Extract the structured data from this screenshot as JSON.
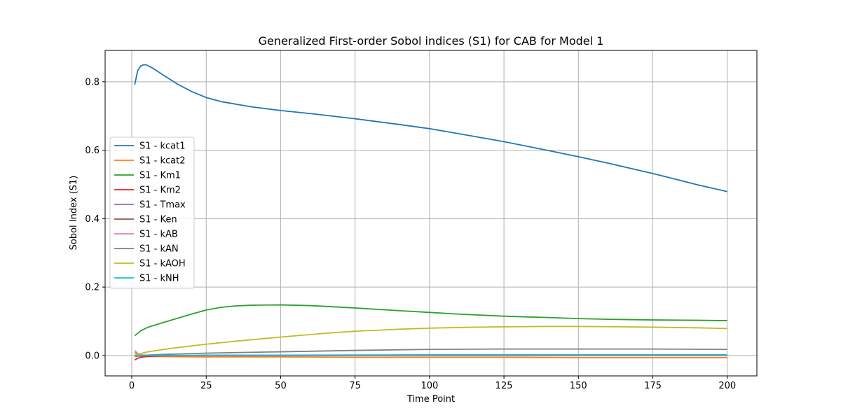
{
  "chart_data": {
    "type": "line",
    "title": "Generalized First-order Sobol indices (S1) for CAB for Model 1",
    "xlabel": "Time Point",
    "ylabel": "Sobol Index (S1)",
    "xlim": [
      -8.95,
      209.95
    ],
    "ylim": [
      -0.0595,
      0.8917
    ],
    "xticks": [
      0,
      25,
      50,
      75,
      100,
      125,
      150,
      175,
      200
    ],
    "yticks": [
      0.0,
      0.2,
      0.4,
      0.6,
      0.8
    ],
    "ytick_labels": [
      "0.0",
      "0.2",
      "0.4",
      "0.6",
      "0.8"
    ],
    "grid": true,
    "legend_position": "center-left",
    "series": [
      {
        "name": "S1 - kcat1",
        "color": "#1f77b4",
        "x": [
          1,
          2,
          3,
          4,
          5,
          7,
          10,
          15,
          20,
          25,
          30,
          40,
          50,
          60,
          75,
          90,
          100,
          110,
          125,
          140,
          150,
          160,
          175,
          190,
          200
        ],
        "y": [
          0.792,
          0.833,
          0.846,
          0.85,
          0.849,
          0.84,
          0.823,
          0.795,
          0.772,
          0.754,
          0.742,
          0.727,
          0.716,
          0.707,
          0.692,
          0.675,
          0.663,
          0.648,
          0.625,
          0.599,
          0.581,
          0.562,
          0.532,
          0.499,
          0.479
        ]
      },
      {
        "name": "S1 - kcat2",
        "color": "#ff7f0e",
        "x": [
          1,
          2,
          3,
          5,
          10,
          25,
          50,
          75,
          100,
          125,
          150,
          175,
          200
        ],
        "y": [
          0.01,
          0.002,
          -0.002,
          -0.003,
          -0.003,
          -0.004,
          -0.004,
          -0.005,
          -0.005,
          -0.005,
          -0.006,
          -0.006,
          -0.006
        ]
      },
      {
        "name": "S1 - Km1",
        "color": "#2ca02c",
        "x": [
          1,
          2,
          3,
          5,
          7,
          10,
          15,
          20,
          25,
          30,
          35,
          40,
          50,
          60,
          75,
          90,
          100,
          110,
          125,
          140,
          150,
          160,
          175,
          190,
          200
        ],
        "y": [
          0.058,
          0.065,
          0.072,
          0.081,
          0.087,
          0.095,
          0.108,
          0.121,
          0.133,
          0.141,
          0.145,
          0.147,
          0.148,
          0.146,
          0.139,
          0.131,
          0.126,
          0.121,
          0.115,
          0.111,
          0.108,
          0.106,
          0.104,
          0.103,
          0.102
        ]
      },
      {
        "name": "S1 - Km2",
        "color": "#d62728",
        "x": [
          1,
          2,
          3,
          5,
          10,
          25,
          50,
          100,
          150,
          200
        ],
        "y": [
          -0.013,
          -0.008,
          -0.005,
          -0.003,
          -0.001,
          0.0,
          0.0,
          0.0,
          0.0,
          0.0
        ]
      },
      {
        "name": "S1 - Tmax",
        "color": "#9467bd",
        "x": [
          1,
          3,
          5,
          10,
          25,
          50,
          100,
          150,
          200
        ],
        "y": [
          0.0,
          0.0,
          0.0,
          0.0,
          0.0,
          0.0,
          0.0,
          0.0,
          0.0
        ]
      },
      {
        "name": "S1 - Ken",
        "color": "#8c564b",
        "x": [
          1,
          3,
          5,
          10,
          25,
          50,
          100,
          150,
          200
        ],
        "y": [
          -0.002,
          -0.001,
          0.0,
          0.0,
          0.0,
          0.0,
          0.0,
          0.0,
          0.0
        ]
      },
      {
        "name": "S1 - kAB",
        "color": "#e377c2",
        "x": [
          1,
          2,
          3,
          5,
          10,
          25,
          50,
          100,
          150,
          200
        ],
        "y": [
          0.015,
          0.006,
          0.002,
          0.001,
          0.0,
          0.0,
          0.0,
          0.0,
          0.0,
          0.0
        ]
      },
      {
        "name": "S1 - kAN",
        "color": "#7f7f7f",
        "x": [
          1,
          3,
          5,
          10,
          25,
          50,
          75,
          100,
          125,
          150,
          175,
          200
        ],
        "y": [
          -0.003,
          -0.001,
          0.001,
          0.003,
          0.007,
          0.011,
          0.015,
          0.018,
          0.019,
          0.019,
          0.019,
          0.018
        ]
      },
      {
        "name": "S1 - kAOH",
        "color": "#bcbd22",
        "x": [
          1,
          3,
          5,
          10,
          15,
          25,
          35,
          50,
          65,
          75,
          90,
          100,
          115,
          125,
          140,
          150,
          165,
          175,
          190,
          200
        ],
        "y": [
          0.002,
          0.006,
          0.01,
          0.017,
          0.023,
          0.033,
          0.042,
          0.054,
          0.065,
          0.071,
          0.077,
          0.08,
          0.083,
          0.084,
          0.085,
          0.085,
          0.084,
          0.083,
          0.081,
          0.079
        ]
      },
      {
        "name": "S1 - kNH",
        "color": "#17becf",
        "x": [
          1,
          3,
          5,
          10,
          25,
          50,
          100,
          150,
          200
        ],
        "y": [
          -0.001,
          0.0,
          0.0,
          0.0,
          0.001,
          0.001,
          0.002,
          0.002,
          0.002
        ]
      }
    ]
  }
}
